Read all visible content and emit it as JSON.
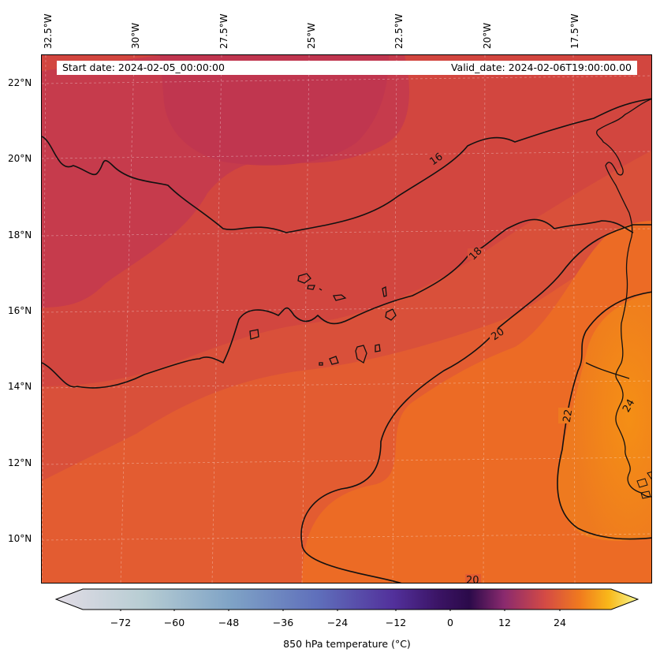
{
  "header": {
    "start_date": "Start date: 2024-02-05_00:00:00",
    "valid_date": "Valid_date: 2024-02-06T19:00:00.00"
  },
  "axes": {
    "longitude_labels": [
      "32.5°W",
      "30°W",
      "27.5°W",
      "25°W",
      "22.5°W",
      "20°W",
      "17.5°W"
    ],
    "latitude_labels": [
      "22°N",
      "20°N",
      "18°N",
      "16°N",
      "14°N",
      "12°N",
      "10°N"
    ]
  },
  "contours": {
    "labels": [
      "16",
      "18",
      "20",
      "22",
      "24",
      "20"
    ]
  },
  "colorbar": {
    "title": "850 hPa temperature (°C)",
    "ticks": [
      "−72",
      "−60",
      "−48",
      "−36",
      "−24",
      "−12",
      "0",
      "12",
      "24"
    ],
    "extend": "both",
    "colors": [
      "#e2dce6",
      "#a9c4cc",
      "#6e8fc3",
      "#5b62b7",
      "#48198a",
      "#2a0c4d",
      "#a33868",
      "#e05a32",
      "#f5a10f",
      "#f7f48c"
    ]
  },
  "map": {
    "fill_colors": {
      "cool_north": "#c4394f",
      "mid": "#d4473f",
      "warm": "#e35c31",
      "warmer": "#ec6d24",
      "hot": "#f3871a"
    },
    "gridlines": "on",
    "coastlines": "on"
  }
}
